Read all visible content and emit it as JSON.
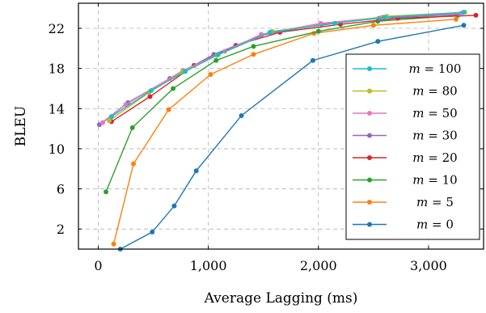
{
  "chart_data": {
    "type": "line",
    "title": "",
    "xlabel": "Average Lagging (ms)",
    "ylabel": "BLEU",
    "xlim": [
      -180,
      3500
    ],
    "ylim": [
      0,
      24.5
    ],
    "xticks": [
      0,
      1000,
      2000,
      3000
    ],
    "xtick_labels": [
      "0",
      "1,000",
      "2,000",
      "3,000"
    ],
    "yticks": [
      2,
      6,
      10,
      14,
      18,
      22
    ],
    "ytick_labels": [
      "2",
      "6",
      "10",
      "14",
      "18",
      "22"
    ],
    "grid": true,
    "grid_style": "dashed",
    "legend_position": "bottom-right",
    "series": [
      {
        "name": "m = 100",
        "var": "m",
        "val": "100",
        "color": "#17becf",
        "points": [
          [
            120,
            13.2
          ],
          [
            480,
            15.8
          ],
          [
            790,
            17.7
          ],
          [
            1090,
            19.4
          ],
          [
            1560,
            21.6
          ],
          [
            2150,
            22.5
          ],
          [
            2600,
            23.1
          ],
          [
            3320,
            23.6
          ]
        ]
      },
      {
        "name": "m = 80",
        "var": "m",
        "val": "80",
        "color": "#bcbd22",
        "points": [
          [
            100,
            12.8
          ],
          [
            460,
            15.6
          ],
          [
            760,
            17.6
          ],
          [
            1080,
            19.3
          ],
          [
            1580,
            21.7
          ],
          [
            2150,
            22.5
          ],
          [
            2620,
            23.2
          ],
          [
            3330,
            23.6
          ]
        ]
      },
      {
        "name": "m = 50",
        "var": "m",
        "val": "50",
        "color": "#e377c2",
        "points": [
          [
            40,
            12.6
          ],
          [
            250,
            14.4
          ],
          [
            770,
            17.8
          ],
          [
            1150,
            19.7
          ],
          [
            1480,
            21.4
          ],
          [
            2020,
            22.5
          ],
          [
            2580,
            23.1
          ],
          [
            3300,
            23.5
          ]
        ]
      },
      {
        "name": "m = 30",
        "var": "m",
        "val": "30",
        "color": "#9467bd",
        "points": [
          [
            10,
            12.4
          ],
          [
            270,
            14.6
          ],
          [
            650,
            17.0
          ],
          [
            1050,
            19.4
          ],
          [
            1480,
            21.3
          ],
          [
            2030,
            22.4
          ],
          [
            2550,
            23.0
          ],
          [
            3280,
            23.4
          ]
        ]
      },
      {
        "name": "m = 20",
        "var": "m",
        "val": "20",
        "color": "#d62728",
        "points": [
          [
            120,
            12.7
          ],
          [
            470,
            15.2
          ],
          [
            870,
            18.3
          ],
          [
            1250,
            20.3
          ],
          [
            1650,
            21.6
          ],
          [
            2200,
            22.4
          ],
          [
            2720,
            23.0
          ],
          [
            3430,
            23.3
          ]
        ]
      },
      {
        "name": "m = 10",
        "var": "m",
        "val": "10",
        "color": "#2ca02c",
        "points": [
          [
            70,
            5.7
          ],
          [
            310,
            12.1
          ],
          [
            680,
            16.0
          ],
          [
            1070,
            18.8
          ],
          [
            1410,
            20.2
          ],
          [
            2000,
            21.7
          ],
          [
            2540,
            22.7
          ],
          [
            3270,
            23.3
          ]
        ]
      },
      {
        "name": "m = 5",
        "var": "m",
        "val": "5",
        "color": "#ff7f0e",
        "points": [
          [
            140,
            0.5
          ],
          [
            320,
            8.5
          ],
          [
            640,
            13.9
          ],
          [
            1020,
            17.4
          ],
          [
            1410,
            19.4
          ],
          [
            1960,
            21.5
          ],
          [
            2500,
            22.3
          ],
          [
            3250,
            22.9
          ]
        ]
      },
      {
        "name": "m = 0",
        "var": "m",
        "val": "0",
        "color": "#1f77b4",
        "points": [
          [
            200,
            0.0
          ],
          [
            490,
            1.7
          ],
          [
            690,
            4.3
          ],
          [
            890,
            7.8
          ],
          [
            1300,
            13.3
          ],
          [
            1950,
            18.8
          ],
          [
            2540,
            20.7
          ],
          [
            3320,
            22.3
          ]
        ]
      }
    ]
  }
}
